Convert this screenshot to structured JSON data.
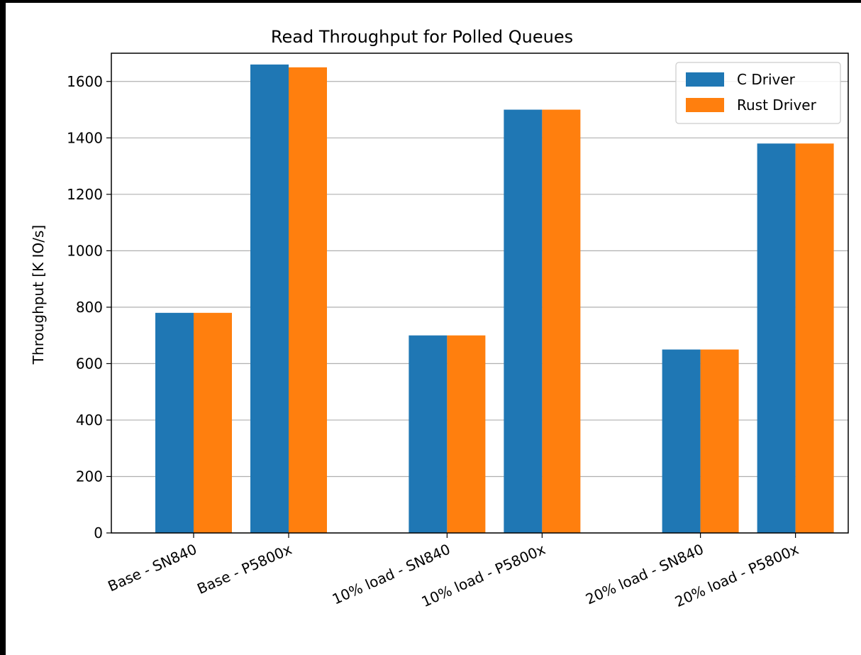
{
  "chart_data": {
    "type": "bar",
    "title": "Read Throughput for Polled Queues",
    "xlabel": "",
    "ylabel": "Throughput [K IO/s]",
    "ylim": [
      0,
      1700
    ],
    "yticks": [
      0,
      200,
      400,
      600,
      800,
      1000,
      1200,
      1400,
      1600
    ],
    "grid": "y",
    "legend_position": "top-right",
    "categories": [
      "Base - SN840",
      "Base - P5800x",
      "10% load - SN840",
      "10% load - P5800x",
      "20% load - SN840",
      "20% load - P5800x"
    ],
    "series": [
      {
        "name": "C Driver",
        "color": "#1f77b4",
        "values": [
          780,
          1660,
          700,
          1500,
          650,
          1380
        ]
      },
      {
        "name": "Rust Driver",
        "color": "#ff7f0e",
        "values": [
          780,
          1650,
          700,
          1500,
          650,
          1380
        ]
      }
    ]
  }
}
